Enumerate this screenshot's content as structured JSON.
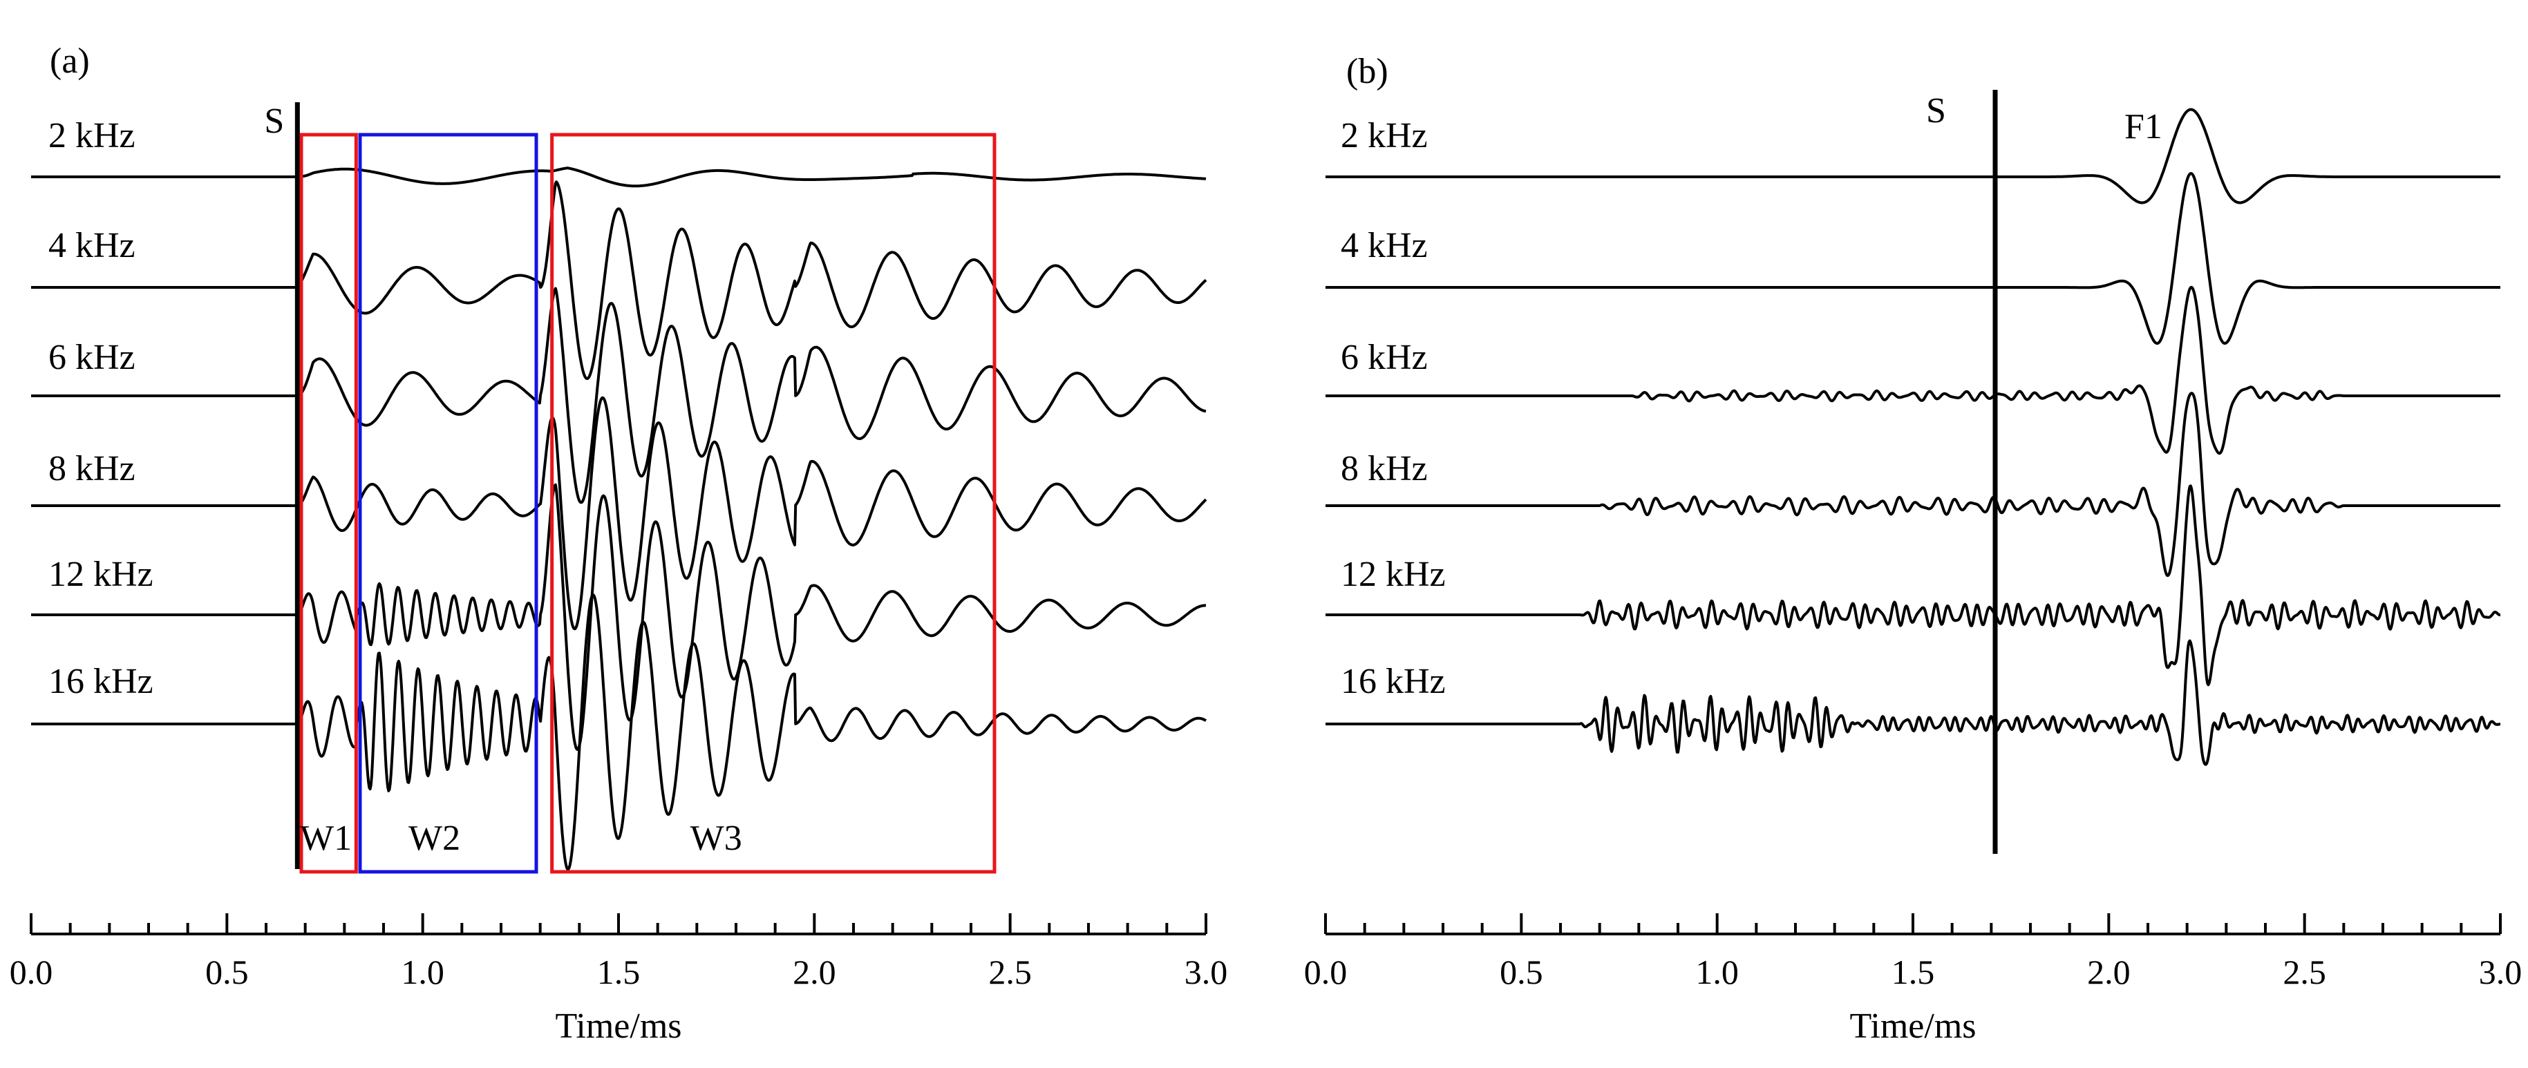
{
  "chart_data": [
    {
      "type": "line",
      "panel_label": "(a)",
      "xlabel": "Time/ms",
      "ylabel": "",
      "xlim": [
        0.0,
        3.0
      ],
      "xticks": [
        "0.0",
        "0.5",
        "1.0",
        "1.5",
        "2.0",
        "2.5",
        "3.0"
      ],
      "series": [
        {
          "name": "2 kHz",
          "components": [
            {
              "t0": 0.68,
              "t1": 3.0,
              "amp": 0.08,
              "freq": 2.0,
              "phase": 0.0
            },
            {
              "t0": 1.33,
              "t1": 2.25,
              "amp": 0.05,
              "freq": 2.8,
              "phase": 1.0
            }
          ]
        },
        {
          "name": "4 kHz",
          "components": [
            {
              "t0": 0.68,
              "t1": 1.3,
              "amp": 0.35,
              "freq": 3.8,
              "phase": 0.5
            },
            {
              "t0": 1.3,
              "t1": 1.95,
              "amp": 1.1,
              "freq": 6.2,
              "phase": 0.0
            },
            {
              "t0": 1.95,
              "t1": 3.0,
              "amp": 0.45,
              "freq": 4.8,
              "phase": 0.3
            }
          ]
        },
        {
          "name": "6 kHz",
          "components": [
            {
              "t0": 0.68,
              "t1": 1.3,
              "amp": 0.4,
              "freq": 4.2,
              "phase": 0.0
            },
            {
              "t0": 1.3,
              "t1": 1.95,
              "amp": 1.25,
              "freq": 6.5,
              "phase": 0.4
            },
            {
              "t0": 1.95,
              "t1": 3.0,
              "amp": 0.5,
              "freq": 4.5,
              "phase": 0.0
            }
          ]
        },
        {
          "name": "8 kHz",
          "components": [
            {
              "t0": 0.68,
              "t1": 1.3,
              "amp": 0.3,
              "freq": 6.5,
              "phase": 0.0
            },
            {
              "t0": 1.3,
              "t1": 1.95,
              "amp": 1.4,
              "freq": 7.0,
              "phase": 0.8
            },
            {
              "t0": 1.95,
              "t1": 3.0,
              "amp": 0.45,
              "freq": 4.8,
              "phase": 0.2
            }
          ]
        },
        {
          "name": "12 kHz",
          "components": [
            {
              "t0": 0.68,
              "t1": 0.83,
              "amp": 0.35,
              "freq": 11.0,
              "phase": 0.0
            },
            {
              "t0": 0.83,
              "t1": 1.3,
              "amp": 0.35,
              "freq": 21.0,
              "phase": 0.0
            },
            {
              "t0": 1.3,
              "t1": 1.95,
              "amp": 1.55,
              "freq": 7.5,
              "phase": 0.2
            },
            {
              "t0": 1.95,
              "t1": 3.0,
              "amp": 0.3,
              "freq": 5.0,
              "phase": 0.0
            }
          ]
        },
        {
          "name": "16 kHz",
          "components": [
            {
              "t0": 0.68,
              "t1": 0.83,
              "amp": 0.4,
              "freq": 12.0,
              "phase": 0.0
            },
            {
              "t0": 0.83,
              "t1": 1.3,
              "amp": 0.8,
              "freq": 20.0,
              "phase": 0.5
            },
            {
              "t0": 1.3,
              "t1": 1.95,
              "amp": 1.6,
              "freq": 7.8,
              "phase": 1.2
            },
            {
              "t0": 1.95,
              "t1": 3.0,
              "amp": 0.18,
              "freq": 8.0,
              "phase": 0.0
            }
          ]
        }
      ],
      "markers": [
        {
          "label": "S",
          "x": 0.68
        }
      ],
      "regions": [
        {
          "label": "W1",
          "x0": 0.69,
          "x1": 0.83,
          "color": "#e8161b"
        },
        {
          "label": "W2",
          "x0": 0.84,
          "x1": 1.29,
          "color": "#1414e0"
        },
        {
          "label": "W3",
          "x0": 1.33,
          "x1": 2.46,
          "color": "#e8161b"
        }
      ]
    },
    {
      "type": "line",
      "panel_label": "(b)",
      "xlabel": "Time/ms",
      "ylabel": "",
      "xlim": [
        0.0,
        3.0
      ],
      "xticks": [
        "0.0",
        "0.5",
        "1.0",
        "1.5",
        "2.0",
        "2.5",
        "3.0"
      ],
      "series": [
        {
          "name": "2 kHz",
          "pulse": {
            "center": 2.21,
            "amp": 0.65,
            "freq": 3.3,
            "sigma": 0.14
          },
          "noise": []
        },
        {
          "name": "4 kHz",
          "pulse": {
            "center": 2.21,
            "amp": 1.1,
            "freq": 5.0,
            "sigma": 0.11
          },
          "noise": []
        },
        {
          "name": "6 kHz",
          "pulse": {
            "center": 2.21,
            "amp": 1.05,
            "freq": 6.5,
            "sigma": 0.09
          },
          "noise": [
            {
              "t0": 0.78,
              "t1": 2.6,
              "amp": 0.05,
              "freq": 22.0,
              "phase": 0.0
            }
          ]
        },
        {
          "name": "8 kHz",
          "pulse": {
            "center": 2.21,
            "amp": 1.15,
            "freq": 7.5,
            "sigma": 0.08
          },
          "noise": [
            {
              "t0": 0.7,
              "t1": 2.6,
              "amp": 0.09,
              "freq": 21.0,
              "phase": 0.0
            }
          ]
        },
        {
          "name": "12 kHz",
          "pulse": {
            "center": 2.21,
            "amp": 1.2,
            "freq": 9.0,
            "sigma": 0.06
          },
          "noise": [
            {
              "t0": 0.65,
              "t1": 3.0,
              "amp": 0.14,
              "freq": 28.0,
              "phase": 0.0
            }
          ]
        },
        {
          "name": "16 kHz",
          "pulse": {
            "center": 2.21,
            "amp": 0.8,
            "freq": 12.0,
            "sigma": 0.045
          },
          "noise": [
            {
              "t0": 0.65,
              "t1": 1.35,
              "amp": 0.28,
              "freq": 30.0,
              "phase": 0.0
            },
            {
              "t0": 1.35,
              "t1": 3.0,
              "amp": 0.09,
              "freq": 32.0,
              "phase": 0.0
            }
          ]
        }
      ],
      "markers": [
        {
          "label": "S",
          "x": 1.71
        }
      ],
      "annotations": [
        {
          "label": "F1",
          "x": 2.04
        }
      ]
    }
  ]
}
